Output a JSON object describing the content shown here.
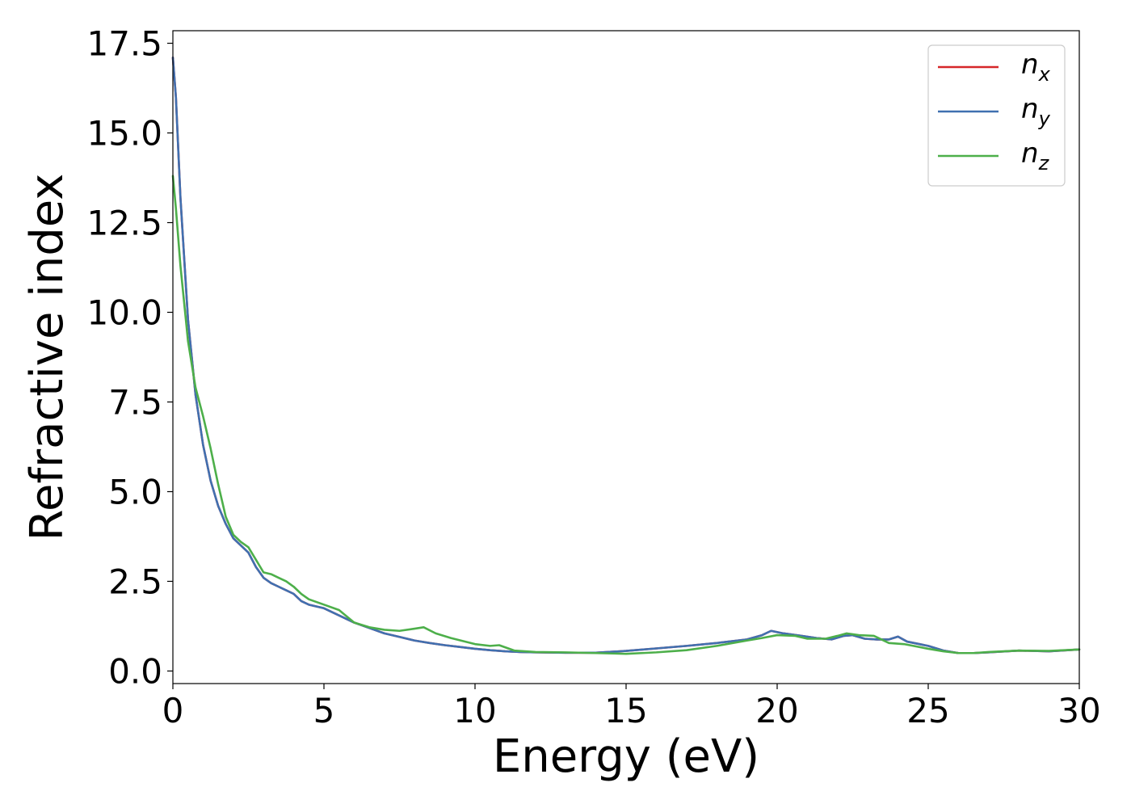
{
  "chart_data": {
    "type": "line",
    "xlabel": "Energy (eV)",
    "ylabel": "Refractive index",
    "xlim": [
      0,
      30
    ],
    "ylim": [
      -0.35,
      17.85
    ],
    "xticks": [
      0,
      5,
      10,
      15,
      20,
      25,
      30
    ],
    "xtick_labels": [
      "0",
      "5",
      "10",
      "15",
      "20",
      "25",
      "30"
    ],
    "yticks": [
      0,
      2.5,
      5,
      7.5,
      10,
      12.5,
      15,
      17.5
    ],
    "ytick_labels": [
      "0.0",
      "2.5",
      "5.0",
      "7.5",
      "10.0",
      "12.5",
      "15.0",
      "17.5"
    ],
    "grid": false,
    "legend_position": "top-right",
    "series": [
      {
        "name": "n_x",
        "legend_base": "n",
        "legend_sub": "x",
        "color": "#d62728",
        "x": [
          0,
          0.1,
          0.25,
          0.5,
          0.75,
          1.0,
          1.25,
          1.5,
          1.75,
          2.0,
          2.25,
          2.5,
          2.75,
          3.0,
          3.25,
          3.5,
          3.75,
          4.0,
          4.25,
          4.5,
          5.0,
          5.5,
          6.0,
          6.5,
          7.0,
          7.5,
          8.0,
          8.5,
          9.0,
          9.5,
          10.0,
          10.5,
          11.0,
          11.5,
          12.0,
          13.0,
          14.0,
          15.0,
          16.0,
          17.0,
          18.0,
          19.0,
          19.5,
          19.8,
          20.2,
          20.8,
          21.3,
          21.8,
          22.2,
          22.5,
          22.9,
          23.3,
          23.7,
          24.0,
          24.3,
          25.0,
          25.5,
          26.0,
          26.5,
          27.0,
          28.0,
          29.0,
          30.0
        ],
        "y": [
          17.1,
          16.0,
          13.2,
          9.8,
          7.7,
          6.3,
          5.3,
          4.6,
          4.1,
          3.7,
          3.5,
          3.3,
          2.9,
          2.6,
          2.45,
          2.35,
          2.25,
          2.15,
          1.95,
          1.85,
          1.75,
          1.55,
          1.35,
          1.2,
          1.05,
          0.95,
          0.85,
          0.78,
          0.72,
          0.67,
          0.62,
          0.58,
          0.55,
          0.53,
          0.52,
          0.51,
          0.51,
          0.56,
          0.63,
          0.7,
          0.78,
          0.88,
          1.0,
          1.12,
          1.05,
          0.98,
          0.92,
          0.88,
          0.98,
          1.0,
          0.9,
          0.88,
          0.88,
          0.96,
          0.82,
          0.7,
          0.57,
          0.5,
          0.5,
          0.52,
          0.57,
          0.55,
          0.6
        ]
      },
      {
        "name": "n_y",
        "legend_base": "n",
        "legend_sub": "y",
        "color": "#4070b0",
        "x": [
          0,
          0.1,
          0.25,
          0.5,
          0.75,
          1.0,
          1.25,
          1.5,
          1.75,
          2.0,
          2.25,
          2.5,
          2.75,
          3.0,
          3.25,
          3.5,
          3.75,
          4.0,
          4.25,
          4.5,
          5.0,
          5.5,
          6.0,
          6.5,
          7.0,
          7.5,
          8.0,
          8.5,
          9.0,
          9.5,
          10.0,
          10.5,
          11.0,
          11.5,
          12.0,
          13.0,
          14.0,
          15.0,
          16.0,
          17.0,
          18.0,
          19.0,
          19.5,
          19.8,
          20.2,
          20.8,
          21.3,
          21.8,
          22.2,
          22.5,
          22.9,
          23.3,
          23.7,
          24.0,
          24.3,
          25.0,
          25.5,
          26.0,
          26.5,
          27.0,
          28.0,
          29.0,
          30.0
        ],
        "y": [
          17.1,
          16.0,
          13.2,
          9.8,
          7.7,
          6.3,
          5.3,
          4.6,
          4.1,
          3.7,
          3.5,
          3.3,
          2.9,
          2.6,
          2.45,
          2.35,
          2.25,
          2.15,
          1.95,
          1.85,
          1.75,
          1.55,
          1.35,
          1.2,
          1.05,
          0.95,
          0.85,
          0.78,
          0.72,
          0.67,
          0.62,
          0.58,
          0.55,
          0.53,
          0.52,
          0.51,
          0.51,
          0.56,
          0.63,
          0.7,
          0.78,
          0.88,
          1.0,
          1.12,
          1.05,
          0.98,
          0.92,
          0.88,
          0.98,
          1.0,
          0.9,
          0.88,
          0.88,
          0.96,
          0.82,
          0.7,
          0.57,
          0.5,
          0.5,
          0.52,
          0.57,
          0.55,
          0.6
        ]
      },
      {
        "name": "n_z",
        "legend_base": "n",
        "legend_sub": "z",
        "color": "#4daf4a",
        "x": [
          0,
          0.1,
          0.25,
          0.5,
          0.75,
          1.0,
          1.25,
          1.5,
          1.75,
          2.0,
          2.25,
          2.5,
          2.75,
          3.0,
          3.25,
          3.5,
          3.75,
          4.0,
          4.25,
          4.5,
          5.0,
          5.5,
          6.0,
          6.5,
          7.0,
          7.5,
          8.0,
          8.3,
          8.7,
          9.2,
          10.0,
          10.5,
          10.8,
          11.3,
          12.0,
          13.0,
          14.0,
          15.0,
          16.0,
          17.0,
          18.0,
          19.0,
          19.5,
          20.0,
          20.6,
          21.0,
          21.6,
          22.0,
          22.3,
          22.7,
          23.2,
          23.7,
          24.2,
          25.0,
          25.5,
          26.0,
          26.5,
          27.0,
          28.0,
          29.0,
          30.0
        ],
        "y": [
          13.8,
          12.9,
          11.3,
          9.2,
          7.9,
          7.1,
          6.2,
          5.2,
          4.3,
          3.8,
          3.6,
          3.45,
          3.1,
          2.75,
          2.7,
          2.6,
          2.5,
          2.35,
          2.15,
          2.0,
          1.85,
          1.7,
          1.35,
          1.22,
          1.15,
          1.12,
          1.18,
          1.22,
          1.05,
          0.92,
          0.75,
          0.7,
          0.72,
          0.57,
          0.53,
          0.52,
          0.5,
          0.48,
          0.52,
          0.58,
          0.7,
          0.85,
          0.92,
          1.0,
          0.98,
          0.9,
          0.9,
          0.98,
          1.05,
          1.0,
          0.98,
          0.78,
          0.75,
          0.62,
          0.55,
          0.5,
          0.5,
          0.53,
          0.57,
          0.56,
          0.6
        ]
      }
    ]
  }
}
